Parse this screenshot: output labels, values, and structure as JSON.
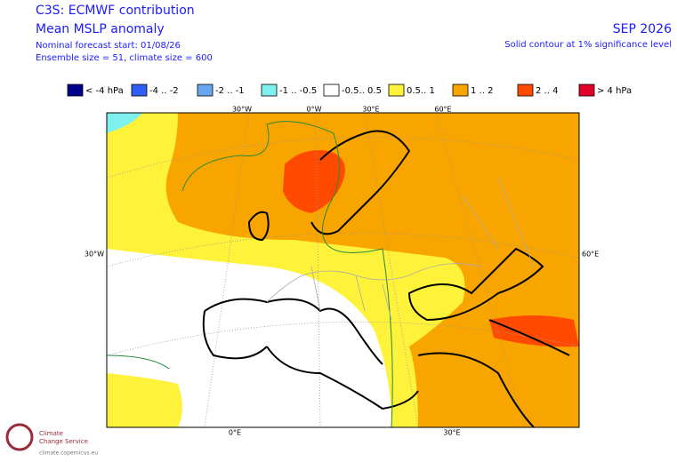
{
  "header": {
    "title": "C3S: ECMWF contribution",
    "subtitle": "Mean MSLP anomaly",
    "forecast_start": "Nominal forecast start: 01/08/26",
    "ensemble": "Ensemble size = 51, climate size = 600",
    "period": "SEP 2026",
    "note": "Solid contour at 1% significance level"
  },
  "legend": [
    {
      "label": "< -4 hPa",
      "color": "#00008b"
    },
    {
      "label": "-4 .. -2",
      "color": "#2e5ef5"
    },
    {
      "label": "-2 .. -1",
      "color": "#6aa6f0"
    },
    {
      "label": "-1 .. -0.5",
      "color": "#7ff0f0"
    },
    {
      "label": "-0.5.. 0.5",
      "color": "#ffffff"
    },
    {
      "label": "0.5.. 1",
      "color": "#fff23a"
    },
    {
      "label": "1 .. 2",
      "color": "#f9a500"
    },
    {
      "label": "2 .. 4",
      "color": "#ff4a00"
    },
    {
      "label": "> 4 hPa",
      "color": "#e0002a"
    }
  ],
  "map": {
    "lon_top": [
      "30°W",
      "0°W",
      "30°E",
      "60°E"
    ],
    "lon_bottom": [
      "0°E",
      "30°E"
    ],
    "left": "30°W",
    "right": "60°E"
  },
  "logo": {
    "line1": "Climate",
    "line2": "Change Service",
    "url": "climate.copernicus.eu"
  }
}
